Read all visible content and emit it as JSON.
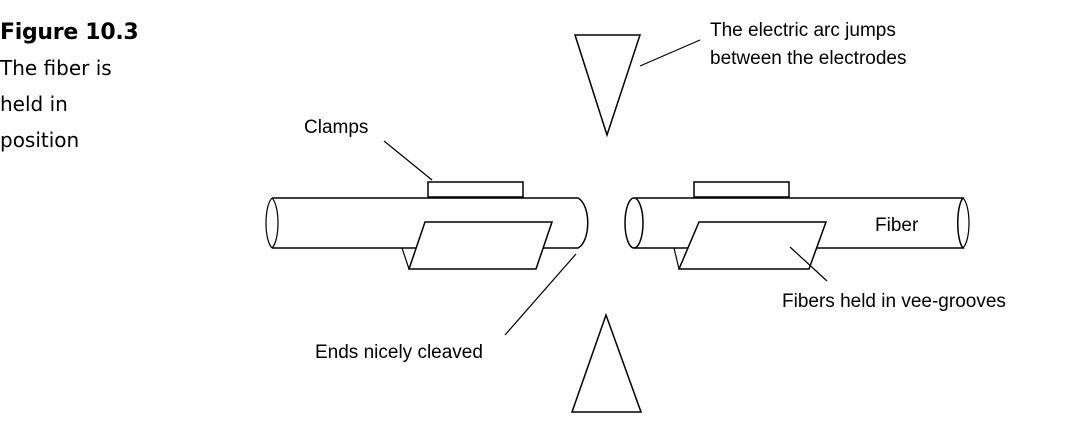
{
  "figure": {
    "number": "Figure 10.3",
    "caption_lines": [
      "The fiber is",
      "held in",
      "position"
    ]
  },
  "labels": {
    "arc_line1": "The electric arc jumps",
    "arc_line2": "between the electrodes",
    "clamps": "Clamps",
    "fiber": "Fiber",
    "vee_grooves": "Fibers held in vee-grooves",
    "cleaved": "Ends nicely cleaved"
  }
}
